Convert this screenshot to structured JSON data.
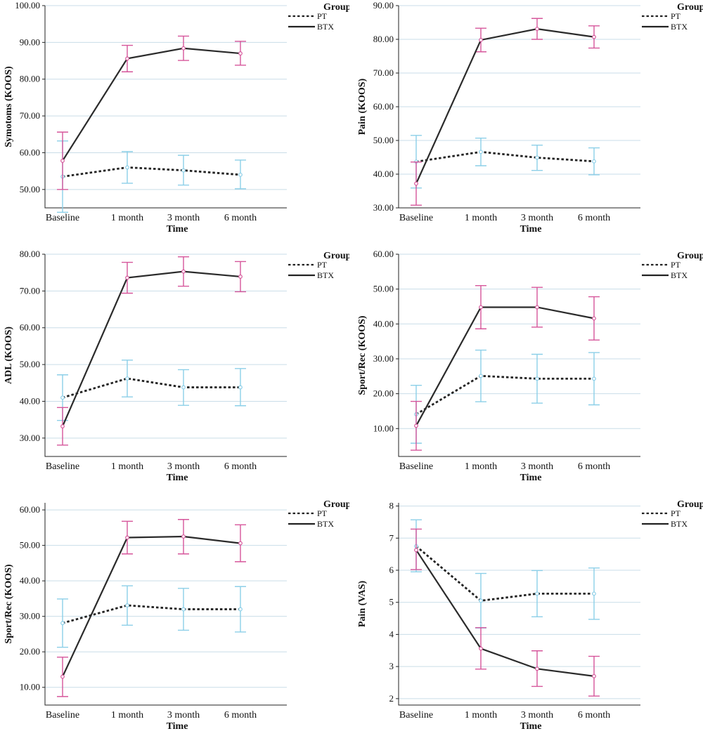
{
  "colors": {
    "pt_line": "#222222",
    "btx_line": "#2b2b2b",
    "pt_error": "#8ccfe8",
    "btx_error": "#d6569b",
    "grid": "#c9dde8",
    "axis": "#222222"
  },
  "chart_data": [
    {
      "type": "line",
      "xlabel": "Time",
      "ylabel": "Symotoms (KOOS)",
      "categories": [
        "Baseline",
        "1 month",
        "3 month",
        "6 month"
      ],
      "ylim": [
        45,
        100
      ],
      "yticks": [
        50,
        60,
        70,
        80,
        90,
        100
      ],
      "ytick_labels": [
        "50.00",
        "60.00",
        "70.00",
        "80.00",
        "90.00",
        "100.00"
      ],
      "legend_title": "Group",
      "series": [
        {
          "name": "PT",
          "style": "dotted",
          "values": [
            53.5,
            56,
            55.2,
            54
          ],
          "lower": [
            43.8,
            51.7,
            51.2,
            50.2
          ],
          "upper": [
            63.2,
            60.3,
            59.3,
            58
          ]
        },
        {
          "name": "BTX",
          "style": "solid",
          "values": [
            57.8,
            85.6,
            88.4,
            87
          ],
          "lower": [
            50,
            82,
            85.1,
            83.8
          ],
          "upper": [
            65.6,
            89.2,
            91.7,
            90.3
          ]
        }
      ]
    },
    {
      "type": "line",
      "xlabel": "Time",
      "ylabel": "Pain (KOOS)",
      "categories": [
        "Baseline",
        "1 month",
        "3 month",
        "6 month"
      ],
      "ylim": [
        30,
        90
      ],
      "yticks": [
        30,
        40,
        50,
        60,
        70,
        80,
        90
      ],
      "ytick_labels": [
        "30.00",
        "40.00",
        "50.00",
        "60.00",
        "70.00",
        "80.00",
        "90.00"
      ],
      "legend_title": "Group",
      "series": [
        {
          "name": "PT",
          "style": "dotted",
          "values": [
            43.7,
            46.6,
            44.9,
            43.8
          ],
          "lower": [
            35.9,
            42.5,
            41.1,
            39.8
          ],
          "upper": [
            51.5,
            50.7,
            48.6,
            47.8
          ]
        },
        {
          "name": "BTX",
          "style": "solid",
          "values": [
            37.2,
            79.8,
            83.1,
            80.7
          ],
          "lower": [
            30.8,
            76.3,
            80,
            77.4
          ],
          "upper": [
            43.6,
            83.3,
            86.2,
            84
          ]
        }
      ]
    },
    {
      "type": "line",
      "xlabel": "Time",
      "ylabel": "ADL (KOOS)",
      "categories": [
        "Baseline",
        "1 month",
        "3 month",
        "6 month"
      ],
      "ylim": [
        25,
        80
      ],
      "yticks": [
        30,
        40,
        50,
        60,
        70,
        80
      ],
      "ytick_labels": [
        "30.00",
        "40.00",
        "50.00",
        "60.00",
        "70.00",
        "80.00"
      ],
      "legend_title": "Group",
      "series": [
        {
          "name": "PT",
          "style": "dotted",
          "values": [
            41,
            46.2,
            43.8,
            43.8
          ],
          "lower": [
            34.8,
            41.2,
            38.9,
            38.8
          ],
          "upper": [
            47.2,
            51.2,
            48.6,
            48.9
          ]
        },
        {
          "name": "BTX",
          "style": "solid",
          "values": [
            33.2,
            73.6,
            75.3,
            73.9
          ],
          "lower": [
            28.1,
            69.4,
            71.3,
            69.8
          ],
          "upper": [
            38.3,
            77.8,
            79.3,
            78
          ]
        }
      ]
    },
    {
      "type": "line",
      "xlabel": "Time",
      "ylabel": "Sport/Rec (KOOS)",
      "categories": [
        "Baseline",
        "1 month",
        "3 month",
        "6 month"
      ],
      "ylim": [
        2,
        60
      ],
      "yticks": [
        10,
        20,
        30,
        40,
        50,
        60
      ],
      "ytick_labels": [
        "10.00",
        "20.00",
        "30.00",
        "40.00",
        "50.00",
        "60.00"
      ],
      "legend_title": "Group",
      "series": [
        {
          "name": "PT",
          "style": "dotted",
          "values": [
            14.1,
            25.1,
            24.3,
            24.3
          ],
          "lower": [
            5.8,
            17.7,
            17.3,
            16.8
          ],
          "upper": [
            22.4,
            32.5,
            31.3,
            31.8
          ]
        },
        {
          "name": "BTX",
          "style": "solid",
          "values": [
            10.8,
            44.8,
            44.8,
            41.6
          ],
          "lower": [
            3.8,
            38.6,
            39.1,
            35.4
          ],
          "upper": [
            17.8,
            51,
            50.5,
            47.8
          ]
        }
      ]
    },
    {
      "type": "line",
      "xlabel": "Time",
      "ylabel": "Sport/Rec (KOOS)",
      "categories": [
        "Baseline",
        "1 month",
        "3 month",
        "6 month"
      ],
      "ylim": [
        5,
        62
      ],
      "yticks": [
        10,
        20,
        30,
        40,
        50,
        60
      ],
      "ytick_labels": [
        "10.00",
        "20.00",
        "30.00",
        "40.00",
        "50.00",
        "60.00"
      ],
      "legend_title": "Group",
      "series": [
        {
          "name": "PT",
          "style": "dotted",
          "values": [
            28.1,
            33.1,
            32,
            32
          ],
          "lower": [
            21.3,
            27.5,
            26.1,
            25.6
          ],
          "upper": [
            34.9,
            38.6,
            37.9,
            38.4
          ]
        },
        {
          "name": "BTX",
          "style": "solid",
          "values": [
            13,
            52.2,
            52.5,
            50.6
          ],
          "lower": [
            7.4,
            47.6,
            47.6,
            45.4
          ],
          "upper": [
            18.5,
            56.8,
            57.3,
            55.8
          ]
        }
      ]
    },
    {
      "type": "line",
      "xlabel": "Time",
      "ylabel": "Pain (VAS)",
      "categories": [
        "Baseline",
        "1 month",
        "3 month",
        "6 month"
      ],
      "ylim": [
        1.8,
        8.1
      ],
      "yticks": [
        2,
        3,
        4,
        5,
        6,
        7,
        8
      ],
      "ytick_labels": [
        "2",
        "3",
        "4",
        "5",
        "6",
        "7",
        "8"
      ],
      "legend_title": "Group",
      "series": [
        {
          "name": "PT",
          "style": "dotted",
          "values": [
            6.75,
            5.05,
            5.27,
            5.27
          ],
          "lower": [
            5.95,
            4.2,
            4.55,
            4.47
          ],
          "upper": [
            7.57,
            5.9,
            5.99,
            6.07
          ]
        },
        {
          "name": "BTX",
          "style": "solid",
          "values": [
            6.63,
            3.56,
            2.93,
            2.7
          ],
          "lower": [
            6.02,
            2.92,
            2.38,
            2.08
          ],
          "upper": [
            7.28,
            4.21,
            3.49,
            3.32
          ]
        }
      ]
    }
  ]
}
